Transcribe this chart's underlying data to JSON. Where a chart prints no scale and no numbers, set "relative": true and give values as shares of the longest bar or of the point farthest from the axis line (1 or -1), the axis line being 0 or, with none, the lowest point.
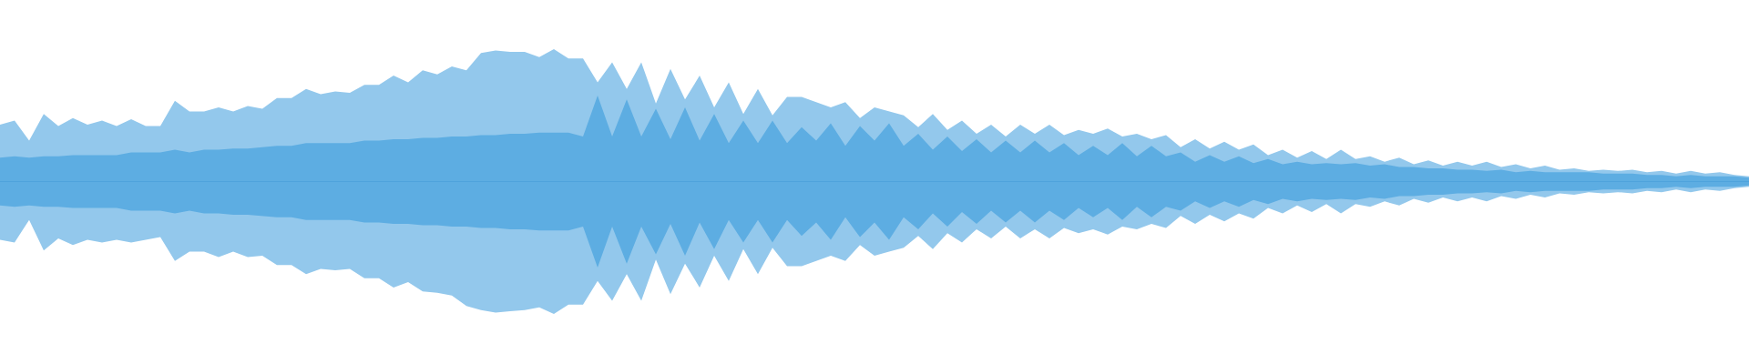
{
  "chart_data": {
    "type": "area",
    "relative": true,
    "categories": [
      null,
      null,
      null,
      null,
      null,
      null,
      null,
      null,
      null,
      null,
      null,
      null,
      null,
      null,
      null,
      null,
      null,
      null,
      null,
      null,
      null,
      null,
      null,
      null,
      null,
      null,
      null,
      null,
      null,
      null,
      null,
      null,
      null,
      null,
      null,
      null,
      null,
      null,
      null,
      null,
      null,
      null,
      null,
      null,
      null,
      null,
      null,
      null,
      null,
      null,
      null,
      null,
      null,
      null,
      null,
      null,
      null,
      null,
      null,
      null,
      null,
      null,
      null,
      null,
      null,
      null,
      null,
      null,
      null,
      null,
      null,
      null,
      null,
      null,
      null,
      null,
      null,
      null,
      null,
      null,
      null,
      null,
      null,
      null,
      null,
      null,
      null,
      null,
      null,
      null,
      null,
      null,
      null,
      null,
      null,
      null,
      null,
      null,
      null,
      null,
      null,
      null,
      null,
      null,
      null,
      null,
      null,
      null,
      null,
      null,
      null,
      null,
      null,
      null,
      null,
      null,
      null,
      null,
      null,
      null,
      null
    ],
    "series": [
      {
        "color": "#93c8ec",
        "values": [
          0.43,
          0.46,
          0.31,
          0.51,
          0.42,
          0.48,
          0.43,
          0.46,
          0.42,
          0.47,
          0.42,
          0.42,
          0.61,
          0.53,
          0.53,
          0.56,
          0.53,
          0.57,
          0.55,
          0.63,
          0.63,
          0.7,
          0.66,
          0.68,
          0.67,
          0.73,
          0.73,
          0.8,
          0.75,
          0.84,
          0.81,
          0.87,
          0.84,
          0.97,
          0.99,
          0.98,
          0.98,
          0.94,
          1.0,
          0.93,
          0.93,
          0.75,
          0.9,
          0.7,
          0.9,
          0.59,
          0.85,
          0.62,
          0.8,
          0.56,
          0.75,
          0.51,
          0.7,
          0.5,
          0.64,
          0.64,
          0.6,
          0.56,
          0.6,
          0.48,
          0.56,
          0.53,
          0.5,
          0.41,
          0.51,
          0.39,
          0.46,
          0.36,
          0.43,
          0.34,
          0.43,
          0.36,
          0.43,
          0.35,
          0.39,
          0.36,
          0.4,
          0.34,
          0.36,
          0.32,
          0.35,
          0.26,
          0.32,
          0.25,
          0.3,
          0.24,
          0.28,
          0.2,
          0.24,
          0.18,
          0.23,
          0.17,
          0.24,
          0.17,
          0.19,
          0.15,
          0.18,
          0.13,
          0.16,
          0.12,
          0.15,
          0.12,
          0.15,
          0.11,
          0.13,
          0.1,
          0.12,
          0.09,
          0.1,
          0.08,
          0.09,
          0.08,
          0.09,
          0.07,
          0.08,
          0.06,
          0.08,
          0.06,
          0.07,
          0.05,
          0.04
        ]
      },
      {
        "color": "#93c8ec",
        "values": [
          -0.44,
          -0.46,
          -0.29,
          -0.52,
          -0.43,
          -0.48,
          -0.44,
          -0.46,
          -0.44,
          -0.46,
          -0.44,
          -0.42,
          -0.6,
          -0.53,
          -0.53,
          -0.57,
          -0.53,
          -0.57,
          -0.56,
          -0.63,
          -0.63,
          -0.7,
          -0.66,
          -0.67,
          -0.66,
          -0.73,
          -0.73,
          -0.8,
          -0.76,
          -0.83,
          -0.84,
          -0.86,
          -0.94,
          -0.97,
          -0.99,
          -0.98,
          -0.97,
          -0.95,
          -1.0,
          -0.93,
          -0.93,
          -0.75,
          -0.9,
          -0.7,
          -0.9,
          -0.59,
          -0.85,
          -0.62,
          -0.8,
          -0.56,
          -0.75,
          -0.51,
          -0.7,
          -0.5,
          -0.64,
          -0.64,
          -0.6,
          -0.56,
          -0.6,
          -0.48,
          -0.56,
          -0.53,
          -0.5,
          -0.41,
          -0.51,
          -0.39,
          -0.46,
          -0.36,
          -0.43,
          -0.34,
          -0.43,
          -0.36,
          -0.43,
          -0.35,
          -0.39,
          -0.36,
          -0.4,
          -0.34,
          -0.36,
          -0.32,
          -0.35,
          -0.26,
          -0.32,
          -0.25,
          -0.3,
          -0.24,
          -0.28,
          -0.2,
          -0.24,
          -0.18,
          -0.23,
          -0.17,
          -0.24,
          -0.17,
          -0.19,
          -0.15,
          -0.18,
          -0.13,
          -0.16,
          -0.12,
          -0.15,
          -0.12,
          -0.15,
          -0.11,
          -0.13,
          -0.1,
          -0.12,
          -0.09,
          -0.1,
          -0.08,
          -0.09,
          -0.08,
          -0.09,
          -0.07,
          -0.08,
          -0.06,
          -0.08,
          -0.06,
          -0.07,
          -0.05,
          -0.04
        ]
      },
      {
        "color": "#5dade2",
        "values": [
          0.18,
          0.19,
          0.18,
          0.19,
          0.19,
          0.2,
          0.2,
          0.2,
          0.2,
          0.22,
          0.22,
          0.22,
          0.24,
          0.22,
          0.24,
          0.24,
          0.25,
          0.25,
          0.26,
          0.27,
          0.27,
          0.29,
          0.29,
          0.29,
          0.29,
          0.31,
          0.31,
          0.32,
          0.32,
          0.33,
          0.33,
          0.34,
          0.34,
          0.35,
          0.35,
          0.36,
          0.36,
          0.37,
          0.37,
          0.37,
          0.34,
          0.65,
          0.34,
          0.62,
          0.34,
          0.55,
          0.32,
          0.56,
          0.31,
          0.51,
          0.29,
          0.46,
          0.29,
          0.46,
          0.29,
          0.41,
          0.31,
          0.44,
          0.27,
          0.42,
          0.31,
          0.44,
          0.27,
          0.36,
          0.24,
          0.34,
          0.23,
          0.32,
          0.22,
          0.31,
          0.22,
          0.31,
          0.22,
          0.29,
          0.2,
          0.27,
          0.2,
          0.29,
          0.19,
          0.27,
          0.19,
          0.22,
          0.15,
          0.2,
          0.15,
          0.19,
          0.14,
          0.17,
          0.13,
          0.15,
          0.13,
          0.14,
          0.13,
          0.14,
          0.12,
          0.13,
          0.11,
          0.11,
          0.1,
          0.1,
          0.09,
          0.09,
          0.08,
          0.09,
          0.07,
          0.08,
          0.07,
          0.07,
          0.07,
          0.07,
          0.06,
          0.06,
          0.06,
          0.05,
          0.05,
          0.04,
          0.05,
          0.04,
          0.04,
          0.04,
          0.03
        ]
      },
      {
        "color": "#5dade2",
        "values": [
          -0.18,
          -0.19,
          -0.18,
          -0.19,
          -0.19,
          -0.2,
          -0.2,
          -0.2,
          -0.2,
          -0.22,
          -0.22,
          -0.22,
          -0.24,
          -0.22,
          -0.24,
          -0.24,
          -0.25,
          -0.25,
          -0.26,
          -0.27,
          -0.27,
          -0.29,
          -0.29,
          -0.29,
          -0.29,
          -0.31,
          -0.31,
          -0.32,
          -0.32,
          -0.33,
          -0.33,
          -0.34,
          -0.34,
          -0.35,
          -0.35,
          -0.36,
          -0.36,
          -0.37,
          -0.37,
          -0.37,
          -0.34,
          -0.65,
          -0.34,
          -0.62,
          -0.34,
          -0.55,
          -0.32,
          -0.56,
          -0.31,
          -0.51,
          -0.29,
          -0.46,
          -0.29,
          -0.46,
          -0.29,
          -0.41,
          -0.31,
          -0.44,
          -0.27,
          -0.42,
          -0.31,
          -0.44,
          -0.27,
          -0.36,
          -0.24,
          -0.34,
          -0.23,
          -0.32,
          -0.22,
          -0.31,
          -0.22,
          -0.31,
          -0.22,
          -0.29,
          -0.2,
          -0.27,
          -0.2,
          -0.29,
          -0.19,
          -0.27,
          -0.19,
          -0.22,
          -0.15,
          -0.2,
          -0.15,
          -0.19,
          -0.14,
          -0.17,
          -0.13,
          -0.15,
          -0.13,
          -0.14,
          -0.13,
          -0.14,
          -0.12,
          -0.13,
          -0.11,
          -0.11,
          -0.1,
          -0.1,
          -0.09,
          -0.09,
          -0.08,
          -0.09,
          -0.07,
          -0.08,
          -0.07,
          -0.07,
          -0.07,
          -0.07,
          -0.06,
          -0.06,
          -0.06,
          -0.05,
          -0.05,
          -0.04,
          -0.05,
          -0.04,
          -0.04,
          -0.04,
          -0.03
        ]
      }
    ],
    "ref_lines": [
      {
        "axis": "y",
        "value": 0,
        "color": "#4fa3dc"
      }
    ]
  }
}
